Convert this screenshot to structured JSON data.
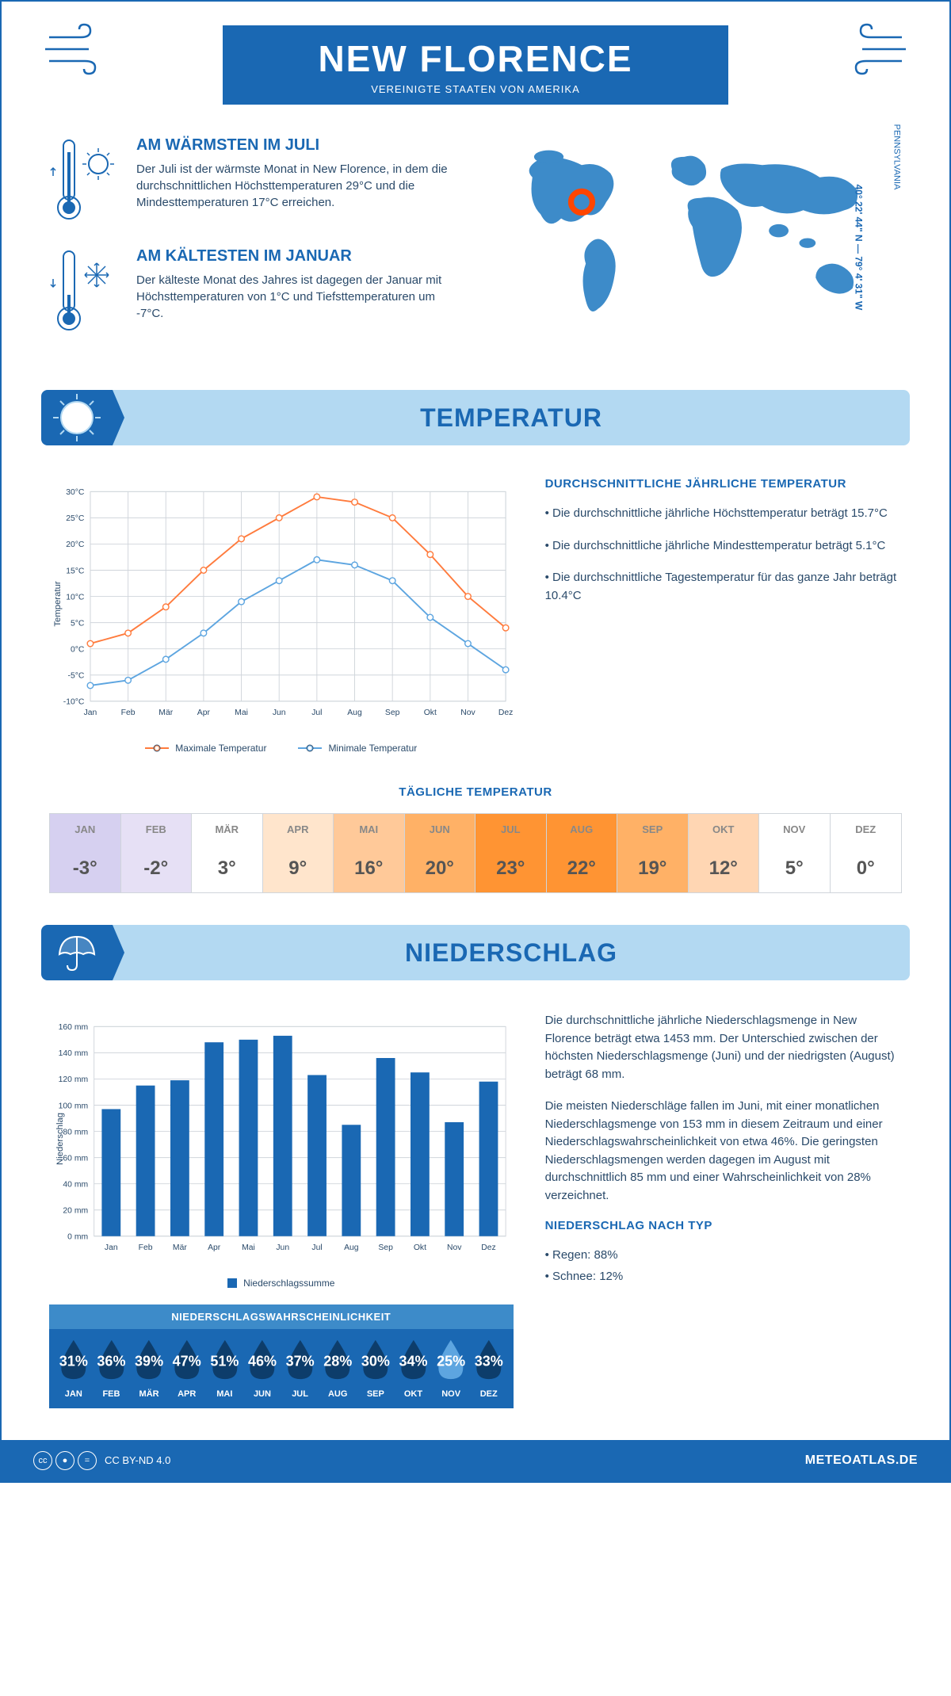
{
  "header": {
    "city": "NEW FLORENCE",
    "country": "VEREINIGTE STAATEN VON AMERIKA",
    "coords": "40° 22' 44\" N — 79° 4' 31\" W",
    "state": "PENNSYLVANIA"
  },
  "colors": {
    "primary": "#1a68b3",
    "light_blue": "#b3d9f2",
    "orange": "#ff7b3d",
    "blue_line": "#5da5e0",
    "bar": "#1a68b3",
    "grid": "#d0d5db",
    "text": "#2a4a6a"
  },
  "warm": {
    "title": "AM WÄRMSTEN IM JULI",
    "text": "Der Juli ist der wärmste Monat in New Florence, in dem die durchschnittlichen Höchsttemperaturen 29°C und die Mindesttemperaturen 17°C erreichen."
  },
  "cold": {
    "title": "AM KÄLTESTEN IM JANUAR",
    "text": "Der kälteste Monat des Jahres ist dagegen der Januar mit Höchsttemperaturen von 1°C und Tiefsttemperaturen um -7°C."
  },
  "temp_section": {
    "title": "TEMPERATUR",
    "stats_title": "DURCHSCHNITTLICHE JÄHRLICHE TEMPERATUR",
    "stat1": "• Die durchschnittliche jährliche Höchsttemperatur beträgt 15.7°C",
    "stat2": "• Die durchschnittliche jährliche Mindesttemperatur beträgt 5.1°C",
    "stat3": "• Die durchschnittliche Tagestemperatur für das ganze Jahr beträgt 10.4°C",
    "chart": {
      "type": "line",
      "months": [
        "Jan",
        "Feb",
        "Mär",
        "Apr",
        "Mai",
        "Jun",
        "Jul",
        "Aug",
        "Sep",
        "Okt",
        "Nov",
        "Dez"
      ],
      "max_temp": [
        1,
        3,
        8,
        15,
        21,
        25,
        29,
        28,
        25,
        18,
        10,
        4
      ],
      "min_temp": [
        -7,
        -6,
        -2,
        3,
        9,
        13,
        17,
        16,
        13,
        6,
        1,
        -4
      ],
      "ylabel": "Temperatur",
      "ylim": [
        -10,
        30
      ],
      "ytick_step": 5,
      "max_label": "Maximale Temperatur",
      "min_label": "Minimale Temperatur",
      "max_color": "#ff7b3d",
      "min_color": "#5da5e0",
      "grid_color": "#d0d5db",
      "line_width": 2,
      "marker_size": 4
    },
    "daily_title": "TÄGLICHE TEMPERATUR",
    "daily": {
      "months": [
        "JAN",
        "FEB",
        "MÄR",
        "APR",
        "MAI",
        "JUN",
        "JUL",
        "AUG",
        "SEP",
        "OKT",
        "NOV",
        "DEZ"
      ],
      "values": [
        "-3°",
        "-2°",
        "3°",
        "9°",
        "16°",
        "20°",
        "23°",
        "22°",
        "19°",
        "12°",
        "5°",
        "0°"
      ],
      "colors": [
        "#d6d0f0",
        "#e6e0f5",
        "#ffffff",
        "#ffe5cc",
        "#ffc999",
        "#ffb166",
        "#ff9433",
        "#ff9433",
        "#ffb166",
        "#ffd6b3",
        "#ffffff",
        "#ffffff"
      ]
    }
  },
  "precip_section": {
    "title": "NIEDERSCHLAG",
    "chart": {
      "type": "bar",
      "months": [
        "Jan",
        "Feb",
        "Mär",
        "Apr",
        "Mai",
        "Jun",
        "Jul",
        "Aug",
        "Sep",
        "Okt",
        "Nov",
        "Dez"
      ],
      "values": [
        97,
        115,
        119,
        148,
        150,
        153,
        123,
        85,
        136,
        125,
        87,
        118
      ],
      "ylabel": "Niederschlag",
      "ylim": [
        0,
        160
      ],
      "ytick_step": 20,
      "bar_color": "#1a68b3",
      "grid_color": "#d0d5db",
      "legend_label": "Niederschlagssumme",
      "bar_width": 0.55
    },
    "text1": "Die durchschnittliche jährliche Niederschlagsmenge in New Florence beträgt etwa 1453 mm. Der Unterschied zwischen der höchsten Niederschlagsmenge (Juni) und der niedrigsten (August) beträgt 68 mm.",
    "text2": "Die meisten Niederschläge fallen im Juni, mit einer monatlichen Niederschlagsmenge von 153 mm in diesem Zeitraum und einer Niederschlagswahrscheinlichkeit von etwa 46%. Die geringsten Niederschlagsmengen werden dagegen im August mit durchschnittlich 85 mm und einer Wahrscheinlichkeit von 28% verzeichnet.",
    "type_title": "NIEDERSCHLAG NACH TYP",
    "type_rain": "• Regen: 88%",
    "type_snow": "• Schnee: 12%",
    "prob": {
      "title": "NIEDERSCHLAGSWAHRSCHEINLICHKEIT",
      "months": [
        "JAN",
        "FEB",
        "MÄR",
        "APR",
        "MAI",
        "JUN",
        "JUL",
        "AUG",
        "SEP",
        "OKT",
        "NOV",
        "DEZ"
      ],
      "values": [
        "31%",
        "36%",
        "39%",
        "47%",
        "51%",
        "46%",
        "37%",
        "28%",
        "30%",
        "34%",
        "25%",
        "33%"
      ],
      "drop_colors": [
        "#0d3d6b",
        "#0d3d6b",
        "#0d3d6b",
        "#0d3d6b",
        "#0d3d6b",
        "#0d3d6b",
        "#0d3d6b",
        "#0d3d6b",
        "#0d3d6b",
        "#0d3d6b",
        "#5da5e0",
        "#0d3d6b"
      ],
      "bg": "#1a68b3",
      "header_bg": "#3d8bc9"
    }
  },
  "footer": {
    "license": "CC BY-ND 4.0",
    "site": "METEOATLAS.DE"
  }
}
